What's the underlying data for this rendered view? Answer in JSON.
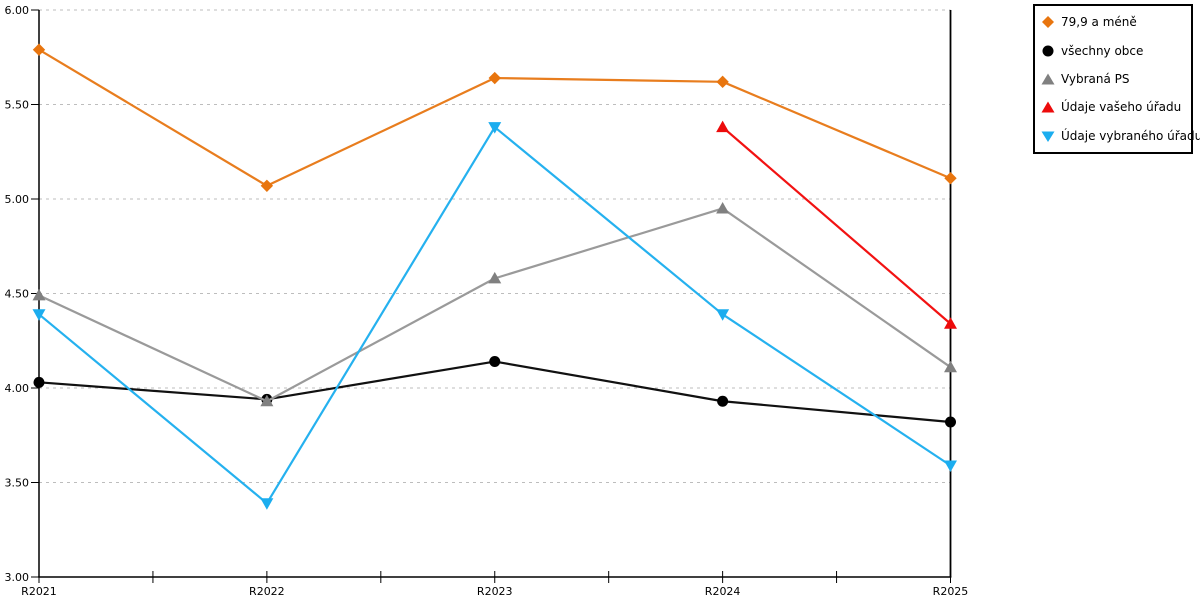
{
  "chart_data": {
    "type": "line",
    "categories": [
      "R2021",
      "R2022",
      "R2023",
      "R2024",
      "R2025"
    ],
    "series": [
      {
        "name": "79,9 a méně",
        "marker": "diamond",
        "color": "#e87d1e",
        "marker_color": "#e8750e",
        "values": [
          5.79,
          5.07,
          5.64,
          5.62,
          5.11
        ]
      },
      {
        "name": "všechny obce",
        "marker": "circle",
        "color": "#111111",
        "marker_color": "#000000",
        "values": [
          4.03,
          3.94,
          4.14,
          3.93,
          3.82
        ]
      },
      {
        "name": "Vybraná PS",
        "marker": "triangle-up",
        "color": "#9a9a9a",
        "marker_color": "#808080",
        "values": [
          4.49,
          3.93,
          4.58,
          4.95,
          4.11
        ]
      },
      {
        "name": "Údaje vašeho úřadu",
        "marker": "triangle-up",
        "color": "#f21212",
        "marker_color": "#ec0b0b",
        "values": [
          null,
          null,
          null,
          5.38,
          4.34
        ]
      },
      {
        "name": "Údaje vybraného úřadu",
        "marker": "triangle-down",
        "color": "#25b1ef",
        "marker_color": "#1badef",
        "values": [
          4.39,
          3.39,
          5.38,
          4.39,
          3.59
        ]
      }
    ],
    "ylim": [
      3.0,
      6.0
    ],
    "ytick_step": 0.5,
    "ytick_label_format": "2-decimals",
    "grid": "horizontal-dashed",
    "legend_position": "top-right",
    "title": "",
    "xlabel": "",
    "ylabel": ""
  },
  "colors": {
    "grid": "#bdbdbd",
    "axis": "#000000",
    "background": "#ffffff",
    "legend_border": "#000000"
  }
}
